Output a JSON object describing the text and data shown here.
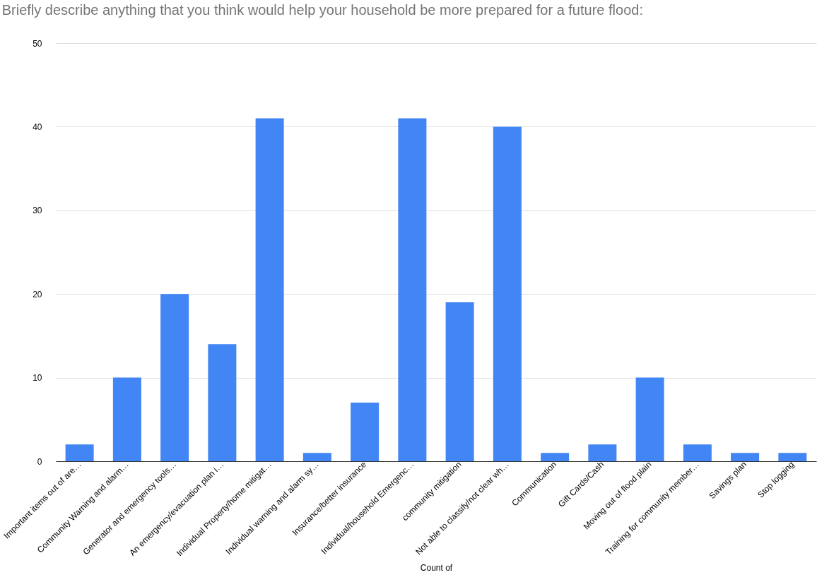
{
  "chart_data": {
    "type": "bar",
    "title": "Briefly describe anything that you think would help your household be more prepared for a future flood:",
    "xlabel": "Count of",
    "categories": [
      "Important items out of are…",
      "Community Warning and alarm…",
      "Generator and emergency tools…",
      "An emergency/evacuation plan i…",
      "Individual Property/home mitigat…",
      "Individual warning and alarm sy…",
      "Insurance/better insurance",
      "Individual/household Emergenc…",
      "community mitigation",
      "Not able to classify/not clear wh…",
      "Communication",
      "Gift Cards/Cash",
      "Moving out of flood plain",
      "Training for community member…",
      "Savings plan",
      "Stop logging"
    ],
    "values": [
      2,
      10,
      20,
      14,
      41,
      1,
      7,
      41,
      19,
      40,
      1,
      2,
      10,
      2,
      1,
      1
    ],
    "color": "#4285f4",
    "ylim": [
      0,
      50
    ],
    "yticks": [
      0,
      10,
      20,
      30,
      40,
      50
    ],
    "grid": "y"
  }
}
